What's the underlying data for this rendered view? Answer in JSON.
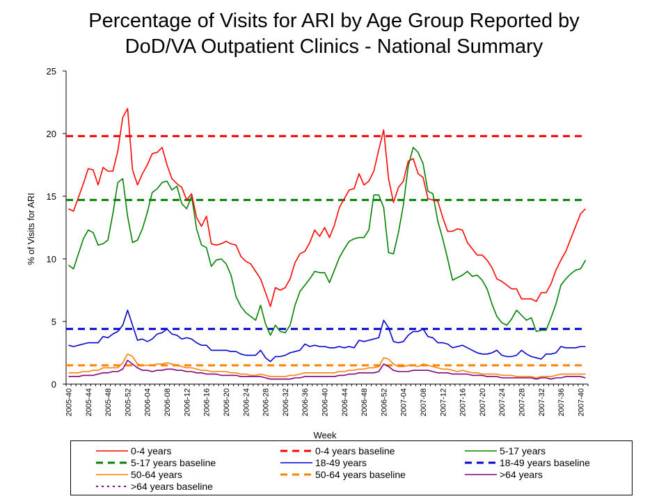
{
  "chart_data": {
    "type": "line",
    "title": "Percentage of Visits for ARI by Age Group Reported by DoD/VA Outpatient Clinics - National Summary",
    "title_lines": [
      "Percentage of Visits for ARI by Age Group Reported by",
      "DoD/VA Outpatient Clinics - National Summary"
    ],
    "xlabel": "Week",
    "ylabel": "% of Visits for ARI",
    "ylim": [
      0,
      25
    ],
    "yticks": [
      0,
      5,
      10,
      15,
      20,
      25
    ],
    "x_tick_labels": [
      "2005-40",
      "2005-44",
      "2005-48",
      "2005-52",
      "2006-04",
      "2006-08",
      "2006-12",
      "2006-16",
      "2006-20",
      "2006-24",
      "2006-28",
      "2006-32",
      "2006-36",
      "2006-40",
      "2006-44",
      "2006-48",
      "2006-52",
      "2007-04",
      "2007-08",
      "2007-12",
      "2007-16",
      "2007-20",
      "2007-24",
      "2007-28",
      "2007-32",
      "2007-36",
      "2007-40"
    ],
    "legend_placement": "bottom",
    "grid": false,
    "series": [
      {
        "name": "0-4 years",
        "color": "#ff0000",
        "style": "solid",
        "values": [
          14,
          13.8,
          14.9,
          16,
          17.2,
          17.1,
          15.9,
          17.3,
          17,
          17,
          18.6,
          21.3,
          22,
          17.1,
          15.9,
          16.8,
          17.5,
          18.4,
          18.5,
          18.9,
          17.5,
          16.4,
          16,
          15.7,
          14.7,
          15.2,
          13.3,
          12.6,
          13.4,
          11.2,
          11.1,
          11.2,
          11.4,
          11.2,
          11.1,
          10.2,
          9.8,
          9.6,
          9,
          8.4,
          7.3,
          6.2,
          7.7,
          7.5,
          7.7,
          8.4,
          9.7,
          10.4,
          10.6,
          11.3,
          12.3,
          11.8,
          12.5,
          11.7,
          12.7,
          14.1,
          14.8,
          15.5,
          15.6,
          16.8,
          15.9,
          16.2,
          17,
          18.7,
          20.3,
          16.4,
          14.5,
          15.7,
          16.2,
          17.8,
          18,
          16.8,
          16.5,
          14.8,
          14.7,
          14.6,
          13.3,
          12.2,
          12.2,
          12.4,
          12.3,
          11.3,
          10.8,
          10.3,
          10.3,
          9.9,
          9.3,
          8.4,
          8.2,
          7.9,
          7.6,
          7.6,
          6.8,
          6.8,
          6.8,
          6.6,
          7.3,
          7.3,
          8,
          9.1,
          9.9,
          10.6,
          11.6,
          12.6,
          13.6,
          14
        ]
      },
      {
        "name": "0-4 years baseline",
        "color": "#ff0000",
        "style": "dashed",
        "constant": 19.8
      },
      {
        "name": "5-17 years",
        "color": "#008000",
        "style": "solid",
        "values": [
          9.5,
          9.2,
          10.4,
          11.6,
          12.3,
          12.1,
          11.1,
          11.2,
          11.5,
          13.6,
          16.1,
          16.4,
          13.4,
          11.3,
          11.5,
          12.4,
          13.7,
          15.3,
          15.6,
          16.1,
          16.2,
          15.5,
          15.8,
          14.4,
          14,
          15,
          12.4,
          11.1,
          10.9,
          9.4,
          9.9,
          10,
          9.6,
          8.7,
          7,
          6.2,
          5.7,
          5.4,
          5.1,
          6.3,
          4.8,
          3.9,
          4.7,
          4.2,
          4.1,
          4.7,
          6.3,
          7.4,
          7.9,
          8.4,
          9,
          8.9,
          8.9,
          8.1,
          9.1,
          10.1,
          10.8,
          11.4,
          11.6,
          11.7,
          11.7,
          12.3,
          15.1,
          15.1,
          14.1,
          10.5,
          10.4,
          12.1,
          14.3,
          17.4,
          18.9,
          18.5,
          17.6,
          15.4,
          15.2,
          13,
          11.6,
          10,
          8.3,
          8.5,
          8.7,
          9,
          8.6,
          8.7,
          8.3,
          7.6,
          6.4,
          5.4,
          4.9,
          4.7,
          5.2,
          5.9,
          5.5,
          5.1,
          5.3,
          4.2,
          4.3,
          4.3,
          5.3,
          6.4,
          7.9,
          8.4,
          8.8,
          9.1,
          9.2,
          9.9
        ]
      },
      {
        "name": "5-17 years baseline",
        "color": "#008000",
        "style": "dashed",
        "constant": 14.7
      },
      {
        "name": "18-49 years",
        "color": "#0000cc",
        "style": "solid",
        "values": [
          3.1,
          3,
          3.1,
          3.2,
          3.3,
          3.3,
          3.3,
          3.8,
          3.7,
          4,
          4.2,
          4.7,
          5.9,
          4.7,
          3.5,
          3.6,
          3.4,
          3.6,
          4,
          4.1,
          4.4,
          4,
          3.9,
          3.6,
          3.7,
          3.6,
          3.3,
          3.1,
          3.1,
          2.7,
          2.7,
          2.7,
          2.7,
          2.6,
          2.6,
          2.4,
          2.3,
          2.3,
          2.3,
          2.7,
          2.1,
          1.8,
          2.2,
          2.2,
          2.3,
          2.5,
          2.6,
          2.7,
          3.2,
          3,
          3.1,
          3,
          3,
          2.9,
          2.9,
          3,
          2.9,
          3,
          2.9,
          3.5,
          3.4,
          3.5,
          3.6,
          3.7,
          5.1,
          4.5,
          3.4,
          3.3,
          3.4,
          3.9,
          4.2,
          4.2,
          4.4,
          3.8,
          3.7,
          3.3,
          3.3,
          3.2,
          2.9,
          3,
          3.1,
          2.9,
          2.7,
          2.5,
          2.4,
          2.4,
          2.5,
          2.7,
          2.3,
          2.2,
          2.2,
          2.3,
          2.7,
          2.4,
          2.2,
          2.1,
          2,
          2.4,
          2.4,
          2.5,
          3,
          2.9,
          2.9,
          2.9,
          3,
          3
        ]
      },
      {
        "name": "18-49 years baseline",
        "color": "#0000cc",
        "style": "dashed",
        "constant": 4.4
      },
      {
        "name": "50-64 years",
        "color": "#ff8000",
        "style": "solid",
        "values": [
          0.9,
          0.9,
          0.9,
          1,
          1,
          1.1,
          1.1,
          1.3,
          1.3,
          1.3,
          1.3,
          1.7,
          2.4,
          2.2,
          1.6,
          1.5,
          1.5,
          1.5,
          1.6,
          1.6,
          1.7,
          1.6,
          1.5,
          1.4,
          1.3,
          1.3,
          1.2,
          1.1,
          1.1,
          1,
          1,
          1,
          1,
          0.9,
          0.9,
          0.8,
          0.8,
          0.7,
          0.7,
          0.8,
          0.7,
          0.6,
          0.6,
          0.6,
          0.6,
          0.7,
          0.7,
          0.8,
          0.9,
          0.9,
          0.9,
          0.9,
          0.9,
          0.9,
          0.9,
          1,
          1,
          1.1,
          1.1,
          1.2,
          1.2,
          1.3,
          1.3,
          1.4,
          2.1,
          2,
          1.6,
          1.4,
          1.4,
          1.5,
          1.5,
          1.4,
          1.6,
          1.5,
          1.4,
          1.3,
          1.2,
          1.2,
          1.1,
          1,
          1.1,
          1,
          0.9,
          0.9,
          0.8,
          0.8,
          0.8,
          0.8,
          0.7,
          0.7,
          0.7,
          0.6,
          0.6,
          0.6,
          0.6,
          0.5,
          0.6,
          0.6,
          0.6,
          0.7,
          0.8,
          0.8,
          0.8,
          0.8,
          0.8,
          0.8
        ]
      },
      {
        "name": "50-64 years baseline",
        "color": "#ff8000",
        "style": "dashed",
        "constant": 1.5
      },
      {
        "name": ">64 years",
        "color": "#800080",
        "style": "solid",
        "values": [
          0.6,
          0.6,
          0.6,
          0.7,
          0.7,
          0.7,
          0.8,
          0.9,
          0.9,
          1,
          1,
          1.2,
          1.9,
          1.6,
          1.3,
          1.1,
          1.1,
          1,
          1.1,
          1.1,
          1.2,
          1.2,
          1.1,
          1.1,
          1,
          1,
          0.9,
          0.9,
          0.8,
          0.8,
          0.8,
          0.7,
          0.7,
          0.7,
          0.7,
          0.6,
          0.6,
          0.6,
          0.6,
          0.6,
          0.5,
          0.4,
          0.4,
          0.4,
          0.4,
          0.4,
          0.5,
          0.5,
          0.6,
          0.6,
          0.6,
          0.6,
          0.6,
          0.6,
          0.6,
          0.7,
          0.7,
          0.8,
          0.8,
          0.9,
          0.9,
          0.9,
          0.9,
          1,
          1.6,
          1.4,
          1.1,
          1,
          1,
          1,
          1.1,
          1.1,
          1.1,
          1.1,
          1,
          0.9,
          0.9,
          0.9,
          0.8,
          0.8,
          0.8,
          0.8,
          0.7,
          0.7,
          0.7,
          0.6,
          0.6,
          0.6,
          0.5,
          0.5,
          0.5,
          0.5,
          0.5,
          0.5,
          0.5,
          0.4,
          0.5,
          0.5,
          0.4,
          0.5,
          0.5,
          0.6,
          0.6,
          0.6,
          0.6,
          0.5
        ]
      },
      {
        "name": ">64 years baseline",
        "color": "#800080",
        "style": "dotted",
        "constant": 1.1
      }
    ]
  }
}
